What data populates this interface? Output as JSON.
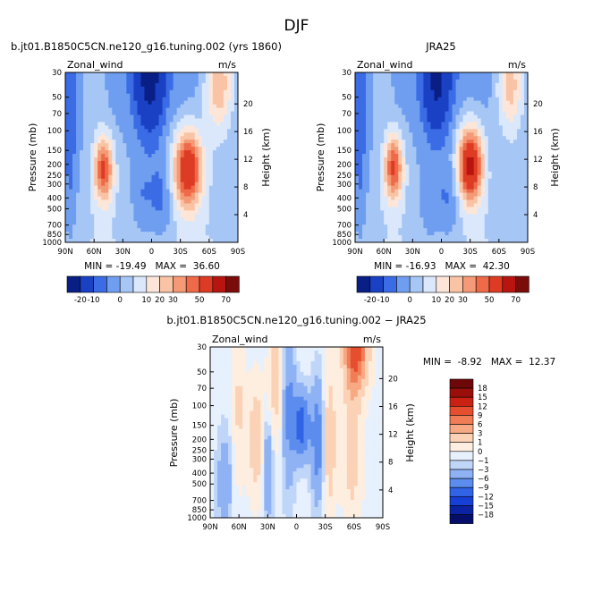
{
  "page_title": "DJF",
  "palettes": {
    "abs": [
      "#0a1f86",
      "#1a40c4",
      "#3b6ce6",
      "#6f9ef0",
      "#a6c6f6",
      "#dbe8fb",
      "#fde6d8",
      "#f9c3a6",
      "#f59a76",
      "#ef6a48",
      "#de3b24",
      "#b81510",
      "#7a0d0a"
    ],
    "diff": [
      "#050f6a",
      "#0b23a3",
      "#163fd6",
      "#3063e6",
      "#5b8cee",
      "#8eb2f4",
      "#c0d6f9",
      "#e7f0fd",
      "#fdeee0",
      "#fbd2b6",
      "#f7a983",
      "#f17d57",
      "#e54e2e",
      "#c92213",
      "#9a0f0a",
      "#6e0808"
    ]
  },
  "chart_data": [
    {
      "type": "contour",
      "title": "b.jt01.B1850C5CN.ne120_g16.tuning.002 (yrs 1860)",
      "variable": "Zonal_wind",
      "units": "m/s",
      "xlabel": "",
      "ylabel": "Pressure (mb)",
      "y2label": "Height (km)",
      "x_ticks": [
        "90N",
        "60N",
        "30N",
        "0",
        "30S",
        "60S",
        "90S"
      ],
      "y_ticks": [
        "30",
        "50",
        "70",
        "100",
        "150",
        "200",
        "250",
        "300",
        "400",
        "500",
        "700",
        "850",
        "1000"
      ],
      "y2_ticks": [
        "20",
        "16",
        "12",
        "8",
        "4"
      ],
      "ylim_mb": [
        30,
        1000
      ],
      "stats": "MIN = -19.49   MAX =  36.60",
      "levels": [
        "-20",
        "-10",
        "0",
        "10",
        "20",
        "30",
        "40",
        "50",
        "60",
        "70"
      ],
      "colorbar_labels": [
        "-20",
        "-10",
        "0",
        "10",
        "20",
        "30",
        "50",
        "70"
      ],
      "features": [
        {
          "lat": -40,
          "p": 220,
          "value": 36.6
        },
        {
          "lat": 48,
          "p": 220,
          "value": 30
        },
        {
          "lat": 0,
          "p": 40,
          "value": -19.5
        },
        {
          "lat": -75,
          "p": 40,
          "value": 15
        }
      ]
    },
    {
      "type": "contour",
      "title": "JRA25",
      "variable": "Zonal_wind",
      "units": "m/s",
      "xlabel": "",
      "ylabel": "Pressure (mb)",
      "y2label": "Height (km)",
      "x_ticks": [
        "90N",
        "60N",
        "30N",
        "0",
        "30S",
        "60S",
        "90S"
      ],
      "y_ticks": [
        "30",
        "50",
        "70",
        "100",
        "150",
        "200",
        "250",
        "300",
        "400",
        "500",
        "700",
        "850",
        "1000"
      ],
      "y2_ticks": [
        "20",
        "16",
        "12",
        "8",
        "4"
      ],
      "ylim_mb": [
        30,
        1000
      ],
      "stats": "MIN = -16.93   MAX =  42.30",
      "levels": [
        "-20",
        "-10",
        "0",
        "10",
        "20",
        "30",
        "40",
        "50",
        "60",
        "70"
      ],
      "colorbar_labels": [
        "-20",
        "-10",
        "0",
        "10",
        "20",
        "30",
        "50",
        "70"
      ],
      "features": [
        {
          "lat": -30,
          "p": 200,
          "value": 42.3
        },
        {
          "lat": 50,
          "p": 210,
          "value": 30
        },
        {
          "lat": 5,
          "p": 40,
          "value": -16.9
        },
        {
          "lat": -70,
          "p": 40,
          "value": 15
        }
      ]
    },
    {
      "type": "contour",
      "title": "b.jt01.B1850C5CN.ne120_g16.tuning.002 − JRA25",
      "variable": "Zonal_wind",
      "units": "m/s",
      "xlabel": "",
      "ylabel": "Pressure (mb)",
      "y2label": "Height (km)",
      "x_ticks": [
        "90N",
        "60N",
        "30N",
        "0",
        "30S",
        "60S",
        "90S"
      ],
      "y_ticks": [
        "30",
        "50",
        "70",
        "100",
        "150",
        "200",
        "250",
        "300",
        "400",
        "500",
        "700",
        "850",
        "1000"
      ],
      "y2_ticks": [
        "20",
        "16",
        "12",
        "8",
        "4"
      ],
      "ylim_mb": [
        30,
        1000
      ],
      "stats": "MIN =  -8.92   MAX =  12.37",
      "levels": [
        "-18",
        "-15",
        "-12",
        "-9",
        "-6",
        "-3",
        "-1",
        "0",
        "1",
        "3",
        "6",
        "9",
        "12",
        "15",
        "18"
      ],
      "colorbar_labels": [
        "18",
        "15",
        "12",
        "9",
        "6",
        "3",
        "1",
        "0",
        "−1",
        "−3",
        "−6",
        "−9",
        "−12",
        "−15",
        "−18"
      ],
      "features": [
        {
          "lat": -60,
          "p": 40,
          "value": 12.4
        },
        {
          "lat": -5,
          "p": 150,
          "value": -8.9
        },
        {
          "lat": 40,
          "p": 200,
          "value": 5
        }
      ]
    }
  ]
}
